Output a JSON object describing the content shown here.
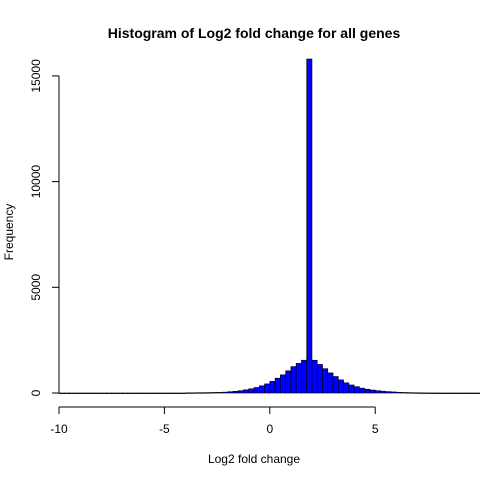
{
  "chart_data": {
    "type": "bar",
    "title": "Histogram of Log2 fold change for all genes",
    "xlabel": "Log2 fold change",
    "ylabel": "Frequency",
    "xlim": [
      -10,
      8.5
    ],
    "ylim": [
      0,
      15800
    ],
    "x_ticks": [
      -10,
      -5,
      0,
      5
    ],
    "x_tick_labels": [
      "-10",
      "-5",
      "0",
      "5"
    ],
    "y_ticks": [
      0,
      5000,
      10000,
      15000
    ],
    "y_tick_labels": [
      "0",
      "5000",
      "10000",
      "15000"
    ],
    "bin_width": 0.25,
    "bin_start": -10,
    "values": [
      0,
      0,
      0,
      0,
      0,
      0,
      0,
      0,
      0,
      0,
      0,
      0,
      0,
      0,
      0,
      0,
      0,
      0,
      0,
      0,
      0,
      0,
      0,
      0,
      10,
      10,
      15,
      15,
      20,
      25,
      30,
      40,
      60,
      80,
      110,
      150,
      200,
      260,
      340,
      430,
      550,
      700,
      860,
      1050,
      1250,
      1400,
      1550,
      15800,
      1550,
      1350,
      1150,
      950,
      780,
      620,
      480,
      380,
      300,
      230,
      180,
      140,
      110,
      85,
      65,
      50,
      35,
      25,
      18,
      12,
      8,
      5,
      3,
      2,
      1,
      1,
      1,
      1,
      1,
      1,
      1,
      1,
      1,
      1,
      1,
      1,
      1,
      1
    ],
    "bar_color": "#0000ff",
    "edge_color": "#000000",
    "grid": false
  }
}
